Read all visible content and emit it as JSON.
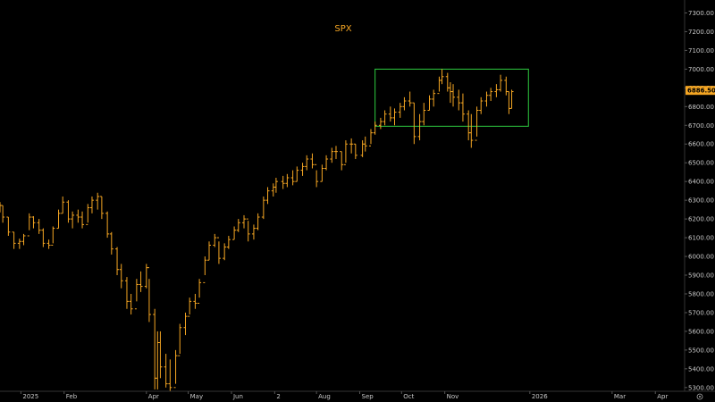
{
  "chart_data": {
    "type": "bar",
    "style": "ohlc",
    "title": "SPX",
    "xlabel": "",
    "ylabel": "",
    "ylim": [
      5280,
      7350
    ],
    "grid": false,
    "legend": "none",
    "y_ticks": [
      "7300.00",
      "7200.00",
      "7100.00",
      "7000.00",
      "6900.00",
      "6800.00",
      "6700.00",
      "6600.00",
      "6500.00",
      "6400.00",
      "6300.00",
      "6200.00",
      "6100.00",
      "6000.00",
      "5900.00",
      "5800.00",
      "5700.00",
      "5600.00",
      "5500.00",
      "5400.00",
      "5300.00"
    ],
    "x_ticks": [
      {
        "label": "2025",
        "date": "2025-01-01"
      },
      {
        "label": "Feb",
        "date": "2025-02-01"
      },
      {
        "label": "Apr",
        "date": "2025-04-01"
      },
      {
        "label": "May",
        "date": "2025-05-01"
      },
      {
        "label": "Jun",
        "date": "2025-06-01"
      },
      {
        "label": "2",
        "date": "2025-07-02"
      },
      {
        "label": "Aug",
        "date": "2025-08-01"
      },
      {
        "label": "Sep",
        "date": "2025-09-01"
      },
      {
        "label": "Oct",
        "date": "2025-10-01"
      },
      {
        "label": "Nov",
        "date": "2025-11-01"
      },
      {
        "label": "2026",
        "date": "2026-01-01"
      },
      {
        "label": "Mar",
        "date": "2026-03-01"
      },
      {
        "label": "Apr",
        "date": "2026-04-01"
      }
    ],
    "x_range": [
      "2024-12-17",
      "2026-04-22"
    ],
    "last_value": "6886.50",
    "rectangle": {
      "start": "2025-09-12",
      "end": "2025-12-31",
      "low": 6695,
      "high": 7000
    },
    "series": [
      {
        "values": [
          [
            "2024-12-17",
            6290,
            6235,
            6272
          ],
          [
            "2024-12-19",
            6272,
            6180,
            6210
          ],
          [
            "2024-12-23",
            6210,
            6110,
            6130
          ],
          [
            "2024-12-27",
            6130,
            6040,
            6070
          ],
          [
            "2024-12-31",
            6095,
            6040,
            6080
          ],
          [
            "2025-01-03",
            6120,
            6060,
            6110
          ],
          [
            "2025-01-07",
            6230,
            6140,
            6210
          ],
          [
            "2025-01-10",
            6215,
            6150,
            6180
          ],
          [
            "2025-01-14",
            6200,
            6120,
            6140
          ],
          [
            "2025-01-17",
            6150,
            6050,
            6070
          ],
          [
            "2025-01-21",
            6090,
            6040,
            6060
          ],
          [
            "2025-01-24",
            6160,
            6070,
            6150
          ],
          [
            "2025-01-28",
            6250,
            6150,
            6230
          ],
          [
            "2025-01-31",
            6320,
            6230,
            6290
          ],
          [
            "2025-02-04",
            6300,
            6180,
            6200
          ],
          [
            "2025-02-07",
            6240,
            6150,
            6220
          ],
          [
            "2025-02-11",
            6250,
            6180,
            6210
          ],
          [
            "2025-02-14",
            6240,
            6150,
            6170
          ],
          [
            "2025-02-18",
            6280,
            6180,
            6260
          ],
          [
            "2025-02-21",
            6320,
            6230,
            6300
          ],
          [
            "2025-02-25",
            6340,
            6250,
            6320
          ],
          [
            "2025-02-28",
            6320,
            6200,
            6230
          ],
          [
            "2025-03-04",
            6240,
            6100,
            6120
          ],
          [
            "2025-03-07",
            6130,
            6010,
            6040
          ],
          [
            "2025-03-11",
            6050,
            5900,
            5930
          ],
          [
            "2025-03-14",
            5960,
            5830,
            5870
          ],
          [
            "2025-03-18",
            5890,
            5720,
            5760
          ],
          [
            "2025-03-21",
            5800,
            5690,
            5720
          ],
          [
            "2025-03-25",
            5880,
            5760,
            5850
          ],
          [
            "2025-03-28",
            5920,
            5810,
            5840
          ],
          [
            "2025-04-01",
            5960,
            5830,
            5940
          ],
          [
            "2025-04-03",
            5880,
            5650,
            5690
          ],
          [
            "2025-04-07",
            5720,
            5290,
            5350
          ],
          [
            "2025-04-09",
            5600,
            5290,
            5540
          ],
          [
            "2025-04-11",
            5600,
            5350,
            5410
          ],
          [
            "2025-04-15",
            5480,
            5300,
            5320
          ],
          [
            "2025-04-18",
            5450,
            5280,
            5300
          ],
          [
            "2025-04-22",
            5500,
            5320,
            5470
          ],
          [
            "2025-04-25",
            5640,
            5480,
            5620
          ],
          [
            "2025-04-29",
            5700,
            5580,
            5680
          ],
          [
            "2025-05-02",
            5780,
            5690,
            5760
          ],
          [
            "2025-05-06",
            5800,
            5720,
            5750
          ],
          [
            "2025-05-09",
            5880,
            5780,
            5860
          ],
          [
            "2025-05-13",
            6000,
            5900,
            5980
          ],
          [
            "2025-05-16",
            6080,
            5980,
            6060
          ],
          [
            "2025-05-20",
            6120,
            6050,
            6100
          ],
          [
            "2025-05-23",
            6080,
            5960,
            5990
          ],
          [
            "2025-05-27",
            6070,
            5980,
            6050
          ],
          [
            "2025-05-30",
            6110,
            6040,
            6090
          ],
          [
            "2025-06-03",
            6160,
            6090,
            6140
          ],
          [
            "2025-06-06",
            6200,
            6130,
            6180
          ],
          [
            "2025-06-10",
            6220,
            6150,
            6200
          ],
          [
            "2025-06-13",
            6190,
            6080,
            6120
          ],
          [
            "2025-06-17",
            6170,
            6090,
            6150
          ],
          [
            "2025-06-20",
            6230,
            6140,
            6210
          ],
          [
            "2025-06-24",
            6320,
            6200,
            6300
          ],
          [
            "2025-06-27",
            6370,
            6280,
            6350
          ],
          [
            "2025-07-01",
            6390,
            6320,
            6370
          ],
          [
            "2025-07-03",
            6420,
            6340,
            6400
          ],
          [
            "2025-07-08",
            6430,
            6360,
            6390
          ],
          [
            "2025-07-11",
            6440,
            6370,
            6420
          ],
          [
            "2025-07-15",
            6460,
            6380,
            6400
          ],
          [
            "2025-07-18",
            6480,
            6400,
            6460
          ],
          [
            "2025-07-22",
            6500,
            6430,
            6480
          ],
          [
            "2025-07-25",
            6540,
            6460,
            6520
          ],
          [
            "2025-07-29",
            6550,
            6470,
            6490
          ],
          [
            "2025-08-01",
            6460,
            6370,
            6400
          ],
          [
            "2025-08-05",
            6490,
            6400,
            6470
          ],
          [
            "2025-08-08",
            6540,
            6460,
            6520
          ],
          [
            "2025-08-12",
            6580,
            6500,
            6560
          ],
          [
            "2025-08-15",
            6590,
            6520,
            6560
          ],
          [
            "2025-08-19",
            6560,
            6460,
            6490
          ],
          [
            "2025-08-22",
            6620,
            6500,
            6600
          ],
          [
            "2025-08-26",
            6630,
            6550,
            6600
          ],
          [
            "2025-08-29",
            6600,
            6520,
            6540
          ],
          [
            "2025-09-03",
            6620,
            6530,
            6600
          ],
          [
            "2025-09-05",
            6640,
            6560,
            6590
          ],
          [
            "2025-09-09",
            6680,
            6600,
            6660
          ],
          [
            "2025-09-12",
            6720,
            6650,
            6700
          ],
          [
            "2025-09-16",
            6740,
            6680,
            6720
          ],
          [
            "2025-09-19",
            6780,
            6700,
            6760
          ],
          [
            "2025-09-23",
            6800,
            6720,
            6740
          ],
          [
            "2025-09-26",
            6790,
            6700,
            6770
          ],
          [
            "2025-09-30",
            6820,
            6740,
            6800
          ],
          [
            "2025-10-03",
            6850,
            6780,
            6830
          ],
          [
            "2025-10-07",
            6880,
            6800,
            6820
          ],
          [
            "2025-10-10",
            6820,
            6600,
            6640
          ],
          [
            "2025-10-14",
            6760,
            6620,
            6720
          ],
          [
            "2025-10-17",
            6820,
            6700,
            6780
          ],
          [
            "2025-10-21",
            6860,
            6780,
            6840
          ],
          [
            "2025-10-24",
            6890,
            6800,
            6870
          ],
          [
            "2025-10-28",
            6960,
            6880,
            6940
          ],
          [
            "2025-10-30",
            7000,
            6920,
            6960
          ],
          [
            "2025-11-03",
            6980,
            6880,
            6900
          ],
          [
            "2025-11-05",
            6930,
            6820,
            6880
          ],
          [
            "2025-11-07",
            6920,
            6800,
            6850
          ],
          [
            "2025-11-11",
            6890,
            6780,
            6820
          ],
          [
            "2025-11-14",
            6870,
            6720,
            6760
          ],
          [
            "2025-11-18",
            6780,
            6620,
            6660
          ],
          [
            "2025-11-20",
            6760,
            6580,
            6620
          ],
          [
            "2025-11-24",
            6800,
            6640,
            6780
          ],
          [
            "2025-11-27",
            6850,
            6760,
            6830
          ],
          [
            "2025-12-01",
            6880,
            6800,
            6860
          ],
          [
            "2025-12-04",
            6900,
            6830,
            6880
          ],
          [
            "2025-12-08",
            6920,
            6850,
            6890
          ],
          [
            "2025-12-11",
            6970,
            6880,
            6940
          ],
          [
            "2025-12-15",
            6960,
            6860,
            6880
          ],
          [
            "2025-12-17",
            6880,
            6760,
            6790
          ],
          [
            "2025-12-19",
            6890,
            6790,
            6880
          ]
        ]
      }
    ]
  }
}
